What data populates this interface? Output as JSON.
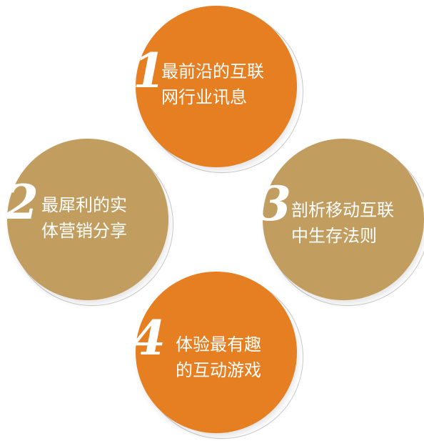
{
  "colors": {
    "orange": "#e67e22",
    "gold": "#c19d5f",
    "text": "#ffffff"
  },
  "items": [
    {
      "number": "1",
      "line1": "最前沿的互联",
      "line2": "网行业讯息",
      "color": "#e67e22"
    },
    {
      "number": "2",
      "line1": "最犀利的实",
      "line2": "体营销分享",
      "color": "#c19d5f"
    },
    {
      "number": "3",
      "line1": "剖析移动互联",
      "line2": "中生存法则",
      "color": "#c19d5f"
    },
    {
      "number": "4",
      "line1": "体验最有趣",
      "line2": "的互动游戏",
      "color": "#e67e22"
    }
  ]
}
